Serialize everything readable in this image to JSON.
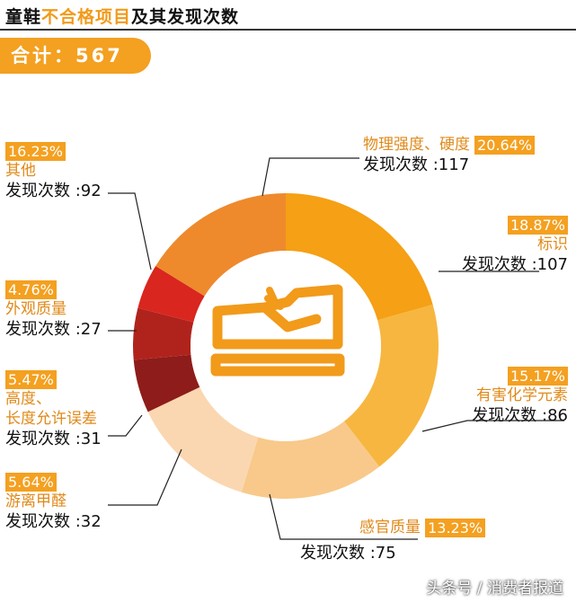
{
  "header": {
    "title_prefix": "童鞋",
    "title_highlight": "不合格项目",
    "title_suffix": "及其发现次数"
  },
  "total": {
    "label": "合计：567"
  },
  "footer": {
    "source": "头条号 / 消费者报道"
  },
  "colors": {
    "accent": "#f4a020"
  },
  "chart_data": {
    "type": "pie",
    "title": "童鞋不合格项目及其发现次数",
    "total": 567,
    "count_prefix": "发现次数 :",
    "slices": [
      {
        "name": "物理强度、硬度",
        "percent": "20.64%",
        "count": 117,
        "value": 20.64,
        "color": "#f5a015"
      },
      {
        "name": "标识",
        "percent": "18.87%",
        "count": 107,
        "value": 18.87,
        "color": "#f7b640"
      },
      {
        "name": "有害化学元素",
        "percent": "15.17%",
        "count": 86,
        "value": 15.17,
        "color": "#f8c98a"
      },
      {
        "name": "感官质量",
        "percent": "13.23%",
        "count": 75,
        "value": 13.23,
        "color": "#fad7b0"
      },
      {
        "name": "游离甲醛",
        "percent": "5.64%",
        "count": 32,
        "value": 5.64,
        "color": "#8e1c1a"
      },
      {
        "name": "高度、长度允许误差",
        "percent": "5.47%",
        "count": 31,
        "value": 5.47,
        "color": "#b0231c"
      },
      {
        "name": "外观质量",
        "percent": "4.76%",
        "count": 27,
        "value": 4.76,
        "color": "#d9261f"
      },
      {
        "name": "其他",
        "percent": "16.23%",
        "count": 92,
        "value": 16.23,
        "color": "#ee8a2c"
      }
    ],
    "labels": {
      "s0": {
        "name": "物理强度、硬度",
        "pct": "20.64%",
        "count": "117"
      },
      "s1": {
        "name": "标识",
        "pct": "18.87%",
        "count": "107"
      },
      "s2": {
        "name": "有害化学元素",
        "pct": "15.17%",
        "count": "86"
      },
      "s3": {
        "name": "感官质量",
        "pct": "13.23%",
        "count": "75"
      },
      "s4": {
        "name": "游离甲醛",
        "pct": "5.64%",
        "count": "32"
      },
      "s5a": "高度、",
      "s5b": "长度允许误差",
      "s5": {
        "pct": "5.47%",
        "count": "31"
      },
      "s6": {
        "name": "外观质量",
        "pct": "4.76%",
        "count": "27"
      },
      "s7": {
        "name": "其他",
        "pct": "16.23%",
        "count": "92"
      }
    }
  }
}
